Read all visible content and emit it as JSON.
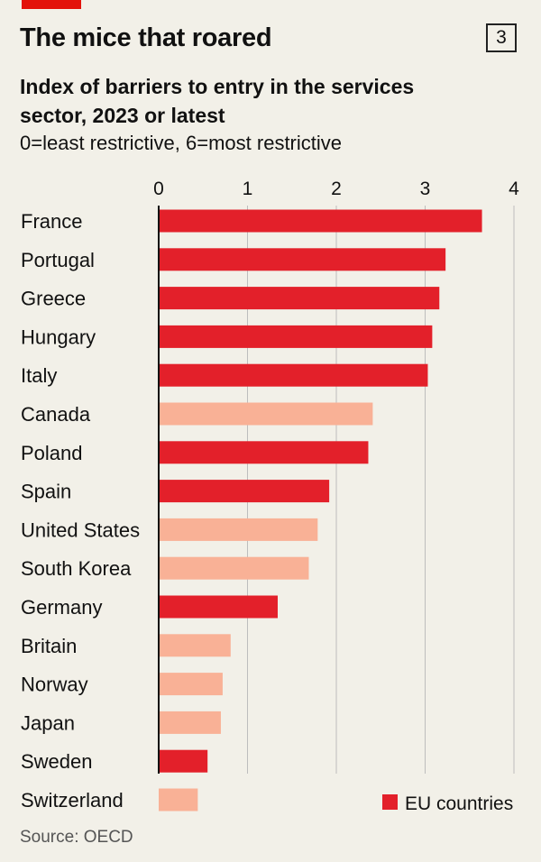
{
  "header": {
    "chart_number": "3"
  },
  "colors": {
    "eu": "#e3202a",
    "non_eu": "#f9b196",
    "grid": "#bdbdbd"
  },
  "chart_data": {
    "type": "bar",
    "orientation": "horizontal",
    "title": "The mice that roared",
    "subtitle": "Index of barriers to entry in the services sector, 2023 or latest",
    "note": "0=least restrictive, 6=most restrictive",
    "xlim": [
      0,
      4
    ],
    "ticks": [
      "0",
      "1",
      "2",
      "3",
      "4"
    ],
    "grid": true,
    "legend": {
      "label": "EU countries",
      "position": "bottom-right"
    },
    "source": "Source: OECD",
    "categories": [
      "France",
      "Portugal",
      "Greece",
      "Hungary",
      "Italy",
      "Canada",
      "Poland",
      "Spain",
      "United States",
      "South Korea",
      "Germany",
      "Britain",
      "Norway",
      "Japan",
      "Sweden",
      "Switzerland"
    ],
    "values": [
      3.64,
      3.23,
      3.16,
      3.08,
      3.03,
      2.41,
      2.36,
      1.92,
      1.79,
      1.69,
      1.34,
      0.81,
      0.72,
      0.7,
      0.55,
      0.44
    ],
    "eu_member": [
      true,
      true,
      true,
      true,
      true,
      false,
      true,
      true,
      false,
      false,
      true,
      false,
      false,
      false,
      true,
      false
    ]
  }
}
